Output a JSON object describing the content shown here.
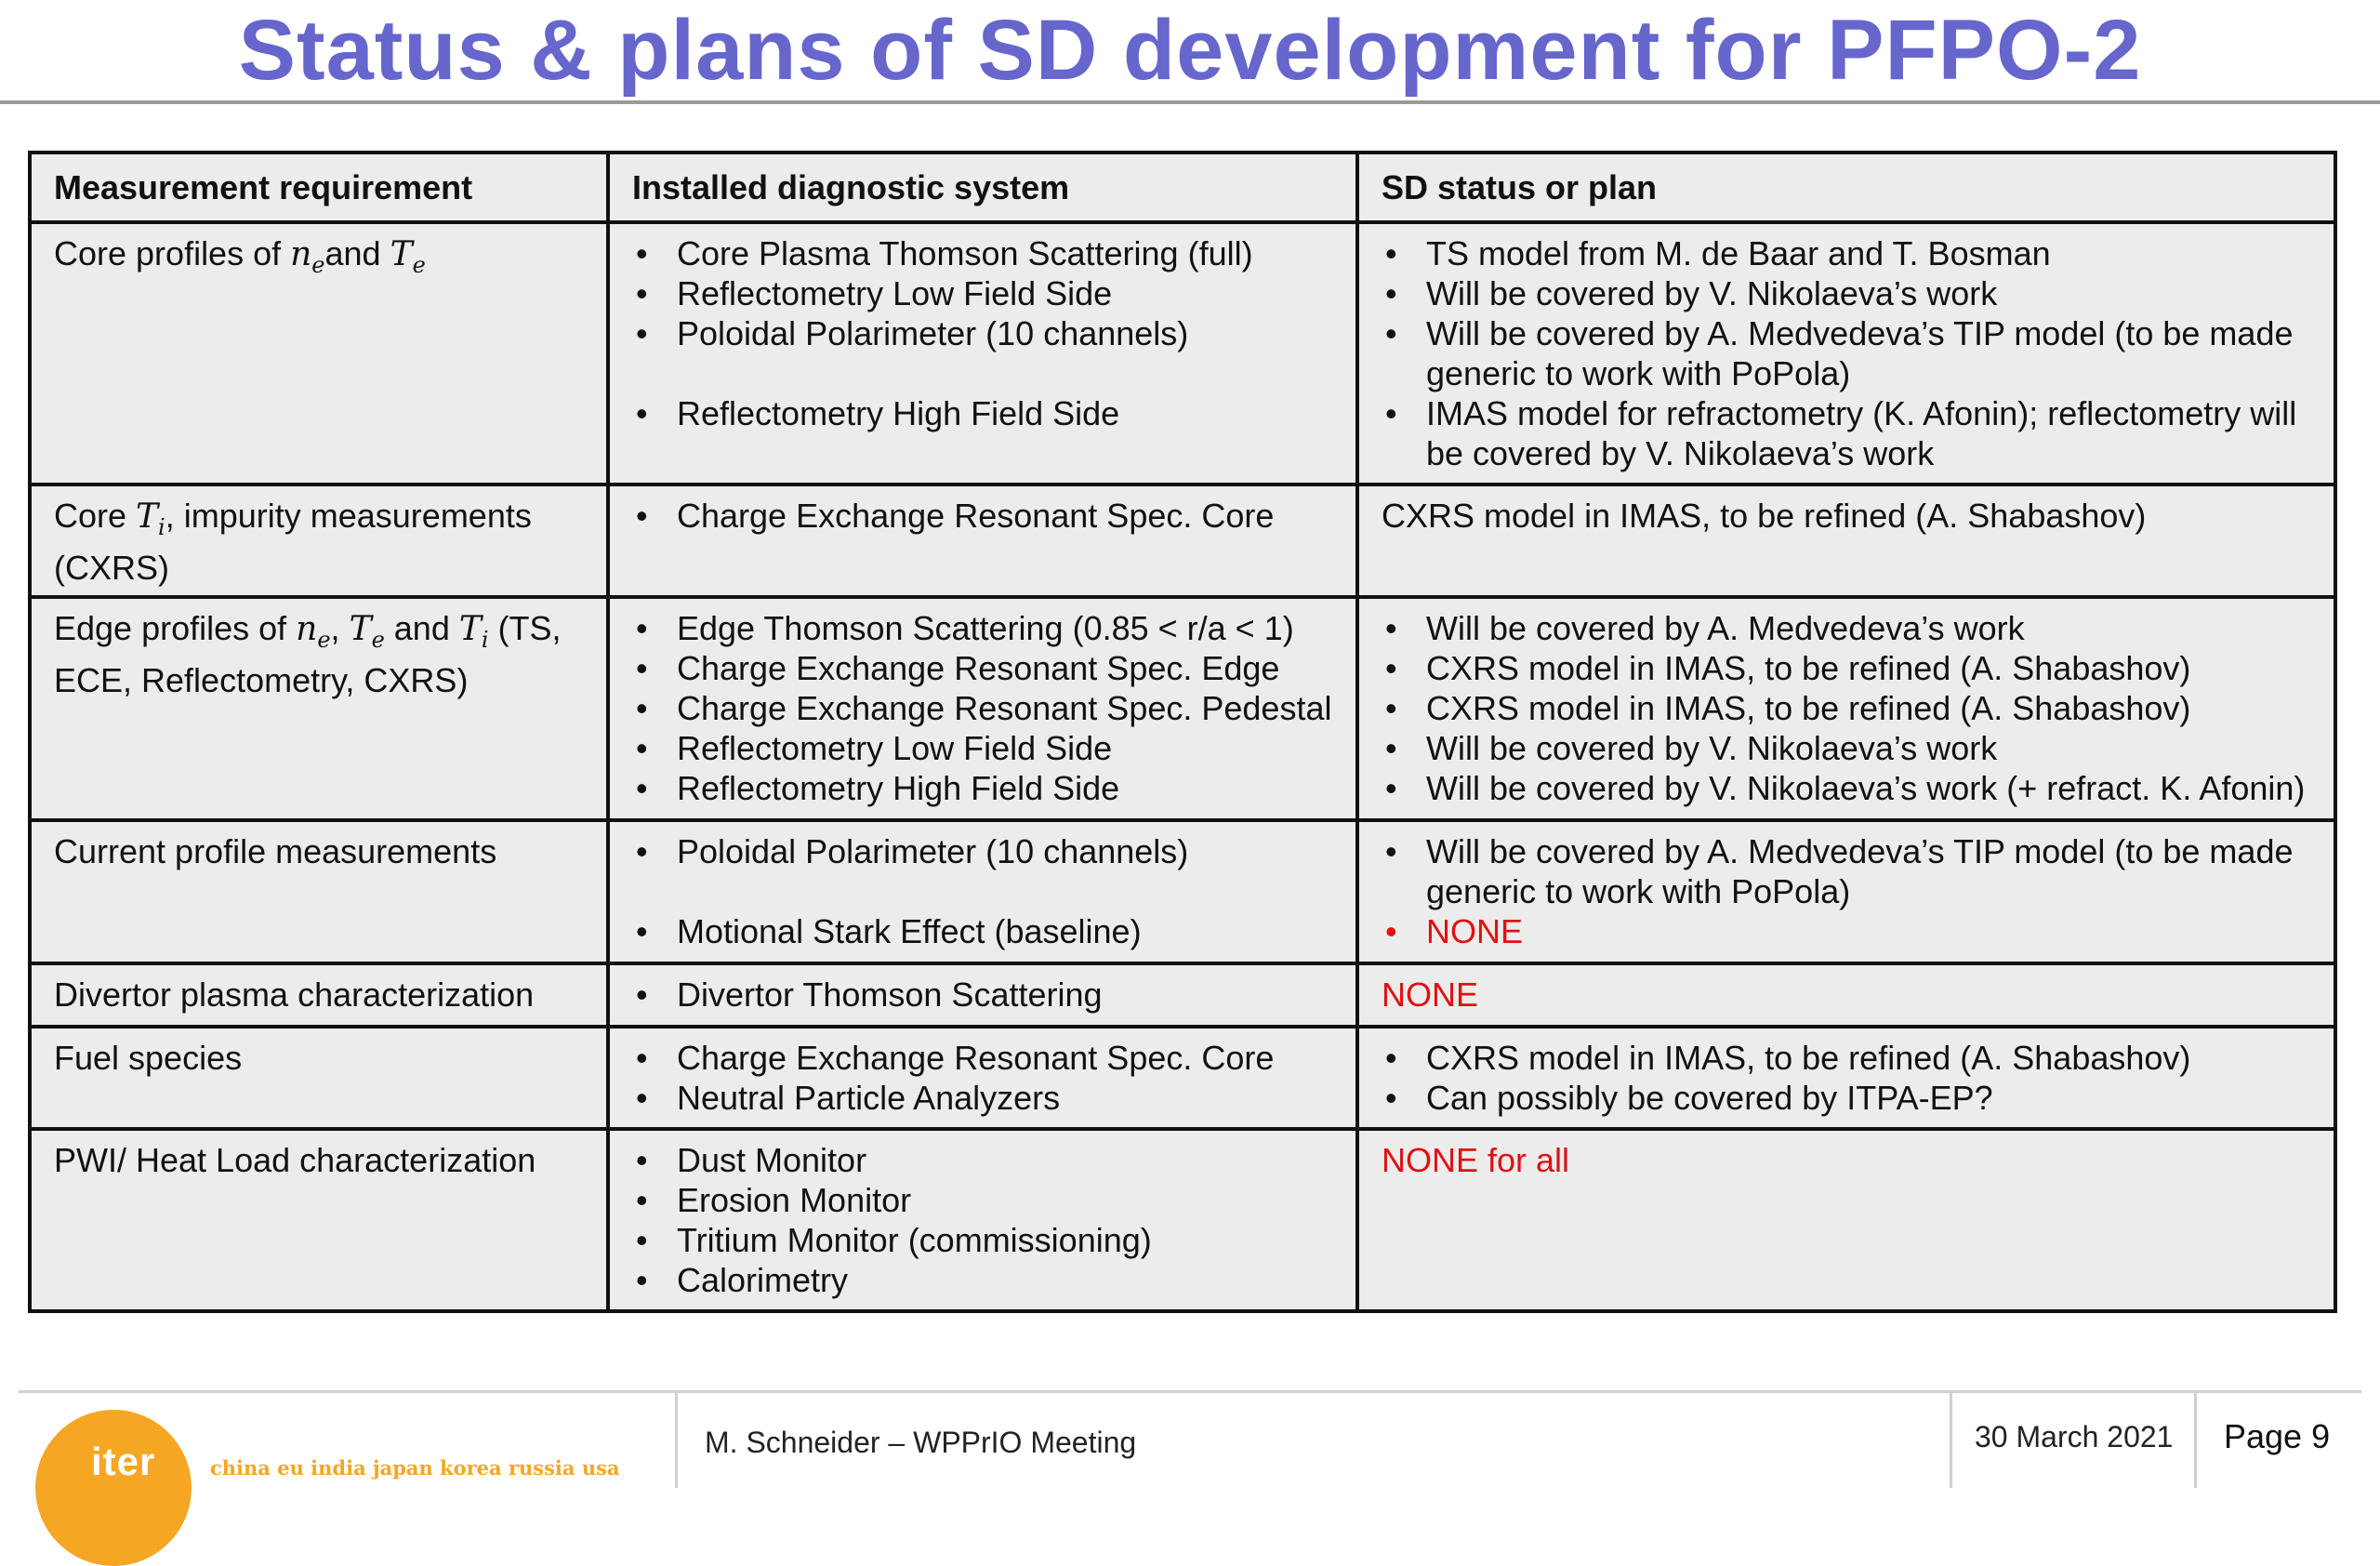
{
  "slide": {
    "title": "Status & plans of SD development for PFPO-2"
  },
  "table": {
    "headers": [
      "Measurement requirement",
      "Installed diagnostic system",
      "SD status or plan"
    ],
    "rows": [
      {
        "requirement": "Core profiles of ne and Te",
        "systems": [
          "Core Plasma Thomson Scattering (full)",
          "Reflectometry Low Field Side",
          "Poloidal Polarimeter (10 channels)",
          "Reflectometry High Field Side"
        ],
        "status": [
          "TS model from M. de Baar and T. Bosman",
          "Will be covered by V. Nikolaeva’s work",
          "Will be covered by A. Medvedeva’s TIP model (to be made generic to work with PoPola)",
          "IMAS model for refractometry (K. Afonin); reflectometry will be covered by V. Nikolaeva’s  work"
        ]
      },
      {
        "requirement": "Core Ti, impurity measurements (CXRS)",
        "systems": [
          "Charge Exchange Resonant Spec. Core"
        ],
        "status_text": "CXRS model in IMAS, to be refined (A. Shabashov)"
      },
      {
        "requirement": "Edge profiles of ne, Te and Ti (TS, ECE, Reflectometry, CXRS)",
        "systems": [
          "Edge Thomson Scattering (0.85 < r/a < 1)",
          "Charge Exchange Resonant Spec. Edge",
          "Charge Exchange Resonant Spec. Pedestal",
          "Reflectometry Low Field Side",
          "Reflectometry High Field Side"
        ],
        "status": [
          "Will be covered by A. Medvedeva’s work",
          "CXRS model in IMAS, to be refined (A. Shabashov)",
          "CXRS model in IMAS, to be refined (A. Shabashov)",
          "Will be covered by V. Nikolaeva’s work",
          "Will be covered by V. Nikolaeva’s work (+ refract. K. Afonin)"
        ]
      },
      {
        "requirement": "Current profile measurements",
        "systems": [
          "Poloidal Polarimeter (10 channels)",
          "Motional Stark Effect (baseline)"
        ],
        "status": [
          "Will be covered by A. Medvedeva’s TIP model (to be made generic to work with PoPola)",
          "NONE"
        ]
      },
      {
        "requirement": "Divertor plasma characterization",
        "systems": [
          "Divertor Thomson Scattering"
        ],
        "status_text": "NONE"
      },
      {
        "requirement": "Fuel species",
        "systems": [
          "Charge Exchange Resonant Spec. Core",
          "Neutral Particle Analyzers"
        ],
        "status": [
          "CXRS model in IMAS, to be refined (A. Shabashov)",
          "Can possibly be covered by ITPA-EP?"
        ]
      },
      {
        "requirement": "PWI/ Heat Load characterization",
        "systems": [
          "Dust Monitor",
          "Erosion Monitor",
          "Tritium Monitor (commissioning)",
          "Calorimetry"
        ],
        "status_text": "NONE for all"
      }
    ]
  },
  "math": {
    "n": "n",
    "T": "T",
    "sub_e": "e",
    "sub_i": "i",
    "core_ne_prefix": "Core profiles of ",
    "and": "and ",
    "core_ti_prefix": "Core ",
    "core_ti_suffix": ", impurity measurements (CXRS)",
    "edge_prefix": "Edge profiles of ",
    "comma": ", ",
    "edge_and": " and ",
    "edge_suffix": " (TS, ECE, Reflectometry, CXRS)"
  },
  "footer": {
    "logo_word": "iter",
    "logo_tagline": "china eu india japan korea russia usa",
    "author_meeting": "M. Schneider – WPPrIO Meeting",
    "date": "30 March 2021",
    "page": "Page 9"
  },
  "colors": {
    "title": "#6666cc",
    "none_red": "#e01010",
    "cell_bg": "#ececec",
    "logo_orange": "#f5a623"
  }
}
